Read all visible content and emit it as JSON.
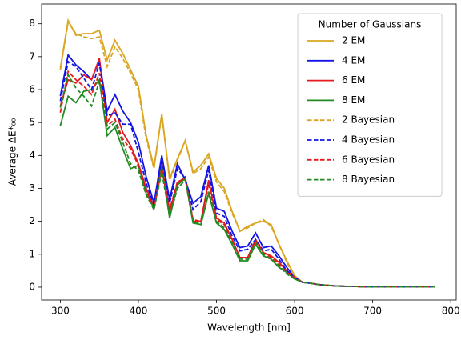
{
  "chart_data": {
    "type": "line",
    "xlabel": "Wavelength [nm]",
    "ylabel": "Average ΔE*₀₀",
    "legend_title": "Number of Gaussians",
    "legend_position": "upper right",
    "xlim": [
      276,
      807
    ],
    "ylim": [
      -0.39,
      8.6
    ],
    "xticks": [
      300,
      400,
      500,
      600,
      700,
      800
    ],
    "yticks": [
      0,
      1,
      2,
      3,
      4,
      5,
      6,
      7,
      8
    ],
    "x": [
      300,
      310,
      320,
      330,
      340,
      350,
      360,
      370,
      380,
      390,
      400,
      410,
      420,
      430,
      440,
      450,
      460,
      470,
      480,
      490,
      500,
      510,
      520,
      530,
      540,
      550,
      560,
      570,
      580,
      590,
      600,
      610,
      620,
      630,
      640,
      650,
      660,
      670,
      680,
      690,
      700,
      710,
      720,
      730,
      740,
      750,
      760,
      770,
      780
    ],
    "series": [
      {
        "name": "2 EM",
        "color": "#daa520",
        "linestyle": "solid",
        "values": [
          6.65,
          8.1,
          7.65,
          7.7,
          7.7,
          7.8,
          6.9,
          7.5,
          7.1,
          6.6,
          6.1,
          4.6,
          3.65,
          5.25,
          3.3,
          3.9,
          4.45,
          3.5,
          3.7,
          4.05,
          3.3,
          3.0,
          2.3,
          1.7,
          1.85,
          1.95,
          2.0,
          1.9,
          1.3,
          0.8,
          0.35,
          0.15,
          0.12,
          0.08,
          0.06,
          0.04,
          0.03,
          0.02,
          0.02,
          0.01,
          0.01,
          0.01,
          0.01,
          0.01,
          0.01,
          0.01,
          0.01,
          0.01,
          0.01
        ]
      },
      {
        "name": "4 EM",
        "color": "#1414e6",
        "linestyle": "solid",
        "values": [
          5.8,
          7.05,
          6.75,
          6.55,
          6.3,
          6.9,
          5.35,
          5.85,
          5.35,
          5.0,
          4.4,
          3.35,
          2.55,
          4.0,
          2.65,
          3.75,
          3.25,
          2.55,
          2.75,
          3.7,
          2.4,
          2.3,
          1.7,
          1.2,
          1.25,
          1.65,
          1.2,
          1.25,
          0.95,
          0.6,
          0.3,
          0.15,
          0.12,
          0.08,
          0.06,
          0.04,
          0.03,
          0.02,
          0.02,
          0.01,
          0.01,
          0.01,
          0.01,
          0.01,
          0.01,
          0.01,
          0.01,
          0.01,
          0.01
        ]
      },
      {
        "name": "6 EM",
        "color": "#e41a1c",
        "linestyle": "solid",
        "values": [
          5.5,
          6.3,
          6.2,
          6.45,
          6.3,
          6.95,
          5.0,
          5.4,
          4.7,
          4.3,
          3.75,
          3.0,
          2.45,
          3.75,
          2.3,
          3.15,
          3.35,
          2.0,
          2.0,
          3.25,
          2.1,
          1.95,
          1.45,
          0.9,
          0.9,
          1.45,
          1.05,
          0.95,
          0.75,
          0.5,
          0.3,
          0.15,
          0.12,
          0.08,
          0.06,
          0.04,
          0.03,
          0.02,
          0.02,
          0.01,
          0.01,
          0.01,
          0.01,
          0.01,
          0.01,
          0.01,
          0.01,
          0.01,
          0.01
        ]
      },
      {
        "name": "8 EM",
        "color": "#228b22",
        "linestyle": "solid",
        "values": [
          4.9,
          5.8,
          5.6,
          5.95,
          6.0,
          6.3,
          4.6,
          4.85,
          4.2,
          3.6,
          3.7,
          2.85,
          2.4,
          3.7,
          2.1,
          3.1,
          3.3,
          1.95,
          1.9,
          2.85,
          1.95,
          1.75,
          1.3,
          0.8,
          0.8,
          1.3,
          0.95,
          0.85,
          0.6,
          0.45,
          0.25,
          0.15,
          0.12,
          0.08,
          0.06,
          0.04,
          0.03,
          0.02,
          0.02,
          0.01,
          0.01,
          0.01,
          0.01,
          0.01,
          0.01,
          0.01,
          0.01,
          0.01,
          0.01
        ]
      },
      {
        "name": "2 Bayesian",
        "color": "#daa520",
        "linestyle": "dashed",
        "values": [
          6.6,
          8.05,
          7.7,
          7.6,
          7.55,
          7.6,
          6.7,
          7.3,
          6.95,
          6.5,
          6.0,
          4.5,
          3.6,
          5.25,
          3.25,
          3.85,
          4.45,
          3.45,
          3.6,
          3.95,
          3.2,
          2.9,
          2.25,
          1.7,
          1.8,
          1.95,
          2.05,
          1.85,
          1.3,
          0.75,
          0.3,
          0.15,
          0.12,
          0.08,
          0.06,
          0.04,
          0.03,
          0.02,
          0.02,
          0.01,
          0.01,
          0.01,
          0.01,
          0.01,
          0.01,
          0.01,
          0.01,
          0.01,
          0.01
        ]
      },
      {
        "name": "4 Bayesian",
        "color": "#1414e6",
        "linestyle": "dashed",
        "values": [
          5.65,
          6.85,
          6.7,
          6.35,
          6.0,
          6.8,
          5.2,
          5.3,
          4.95,
          4.95,
          4.1,
          3.15,
          2.5,
          3.9,
          2.55,
          3.6,
          3.3,
          2.35,
          2.6,
          3.55,
          2.25,
          2.15,
          1.55,
          1.1,
          1.15,
          1.45,
          1.1,
          1.15,
          0.85,
          0.5,
          0.3,
          0.15,
          0.12,
          0.08,
          0.06,
          0.04,
          0.03,
          0.02,
          0.02,
          0.01,
          0.01,
          0.01,
          0.01,
          0.01,
          0.01,
          0.01,
          0.01,
          0.01,
          0.01
        ]
      },
      {
        "name": "6 Bayesian",
        "color": "#e41a1c",
        "linestyle": "dashed",
        "values": [
          5.3,
          6.55,
          6.3,
          6.1,
          5.85,
          6.5,
          4.9,
          5.1,
          4.5,
          4.2,
          3.7,
          2.95,
          2.4,
          3.6,
          2.35,
          3.2,
          3.3,
          2.05,
          2.0,
          3.15,
          2.05,
          1.9,
          1.4,
          0.9,
          0.9,
          1.4,
          1.05,
          0.9,
          0.7,
          0.45,
          0.3,
          0.15,
          0.12,
          0.08,
          0.06,
          0.04,
          0.03,
          0.02,
          0.02,
          0.01,
          0.01,
          0.01,
          0.01,
          0.01,
          0.01,
          0.01,
          0.01,
          0.01,
          0.01
        ]
      },
      {
        "name": "8 Bayesian",
        "color": "#228b22",
        "linestyle": "dashed",
        "values": [
          5.45,
          6.45,
          6.05,
          5.8,
          5.5,
          6.25,
          4.8,
          5.0,
          4.4,
          3.75,
          3.55,
          2.8,
          2.35,
          3.5,
          2.15,
          3.0,
          3.25,
          2.0,
          1.9,
          2.9,
          2.0,
          1.8,
          1.35,
          0.85,
          0.85,
          1.35,
          1.0,
          0.85,
          0.65,
          0.4,
          0.25,
          0.15,
          0.12,
          0.08,
          0.06,
          0.04,
          0.03,
          0.02,
          0.02,
          0.01,
          0.01,
          0.01,
          0.01,
          0.01,
          0.01,
          0.01,
          0.01,
          0.01,
          0.01
        ]
      }
    ]
  }
}
